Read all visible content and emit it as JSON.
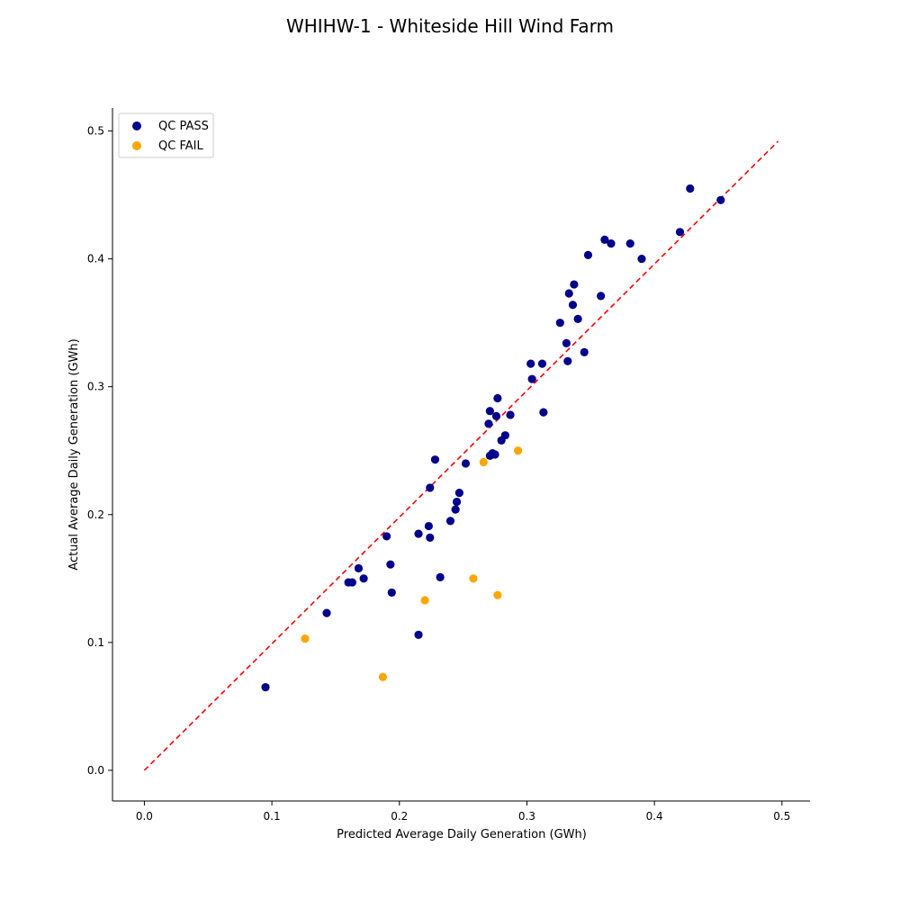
{
  "chart_data": {
    "type": "scatter",
    "title": "WHIHW-1 - Whiteside Hill Wind Farm",
    "xlabel": "Predicted Average Daily Generation (GWh)",
    "ylabel": "Actual Average Daily Generation (GWh)",
    "xlim": [
      -0.025,
      0.522
    ],
    "ylim": [
      -0.024,
      0.518
    ],
    "xticks": [
      "0.0",
      "0.1",
      "0.2",
      "0.3",
      "0.4",
      "0.5"
    ],
    "yticks": [
      "0.0",
      "0.1",
      "0.2",
      "0.3",
      "0.4",
      "0.5"
    ],
    "grid": false,
    "legend_position": "top-left",
    "reference_line": {
      "style": "dashed",
      "color": "#ff0000",
      "x": [
        0.0,
        0.497
      ],
      "y": [
        0.0,
        0.492
      ]
    },
    "series": [
      {
        "name": "QC PASS",
        "color": "#00008b",
        "points": [
          [
            0.095,
            0.065
          ],
          [
            0.143,
            0.123
          ],
          [
            0.16,
            0.147
          ],
          [
            0.163,
            0.147
          ],
          [
            0.168,
            0.158
          ],
          [
            0.172,
            0.15
          ],
          [
            0.19,
            0.183
          ],
          [
            0.193,
            0.161
          ],
          [
            0.194,
            0.139
          ],
          [
            0.215,
            0.185
          ],
          [
            0.215,
            0.106
          ],
          [
            0.223,
            0.191
          ],
          [
            0.224,
            0.182
          ],
          [
            0.224,
            0.221
          ],
          [
            0.228,
            0.243
          ],
          [
            0.232,
            0.151
          ],
          [
            0.24,
            0.195
          ],
          [
            0.244,
            0.204
          ],
          [
            0.245,
            0.21
          ],
          [
            0.247,
            0.217
          ],
          [
            0.252,
            0.24
          ],
          [
            0.27,
            0.271
          ],
          [
            0.271,
            0.281
          ],
          [
            0.271,
            0.246
          ],
          [
            0.273,
            0.248
          ],
          [
            0.275,
            0.247
          ],
          [
            0.276,
            0.277
          ],
          [
            0.277,
            0.291
          ],
          [
            0.28,
            0.258
          ],
          [
            0.283,
            0.262
          ],
          [
            0.287,
            0.278
          ],
          [
            0.303,
            0.318
          ],
          [
            0.304,
            0.306
          ],
          [
            0.312,
            0.318
          ],
          [
            0.313,
            0.28
          ],
          [
            0.326,
            0.35
          ],
          [
            0.331,
            0.334
          ],
          [
            0.332,
            0.32
          ],
          [
            0.333,
            0.373
          ],
          [
            0.336,
            0.364
          ],
          [
            0.337,
            0.38
          ],
          [
            0.34,
            0.353
          ],
          [
            0.345,
            0.327
          ],
          [
            0.348,
            0.403
          ],
          [
            0.358,
            0.371
          ],
          [
            0.361,
            0.415
          ],
          [
            0.366,
            0.412
          ],
          [
            0.381,
            0.412
          ],
          [
            0.39,
            0.4
          ],
          [
            0.42,
            0.421
          ],
          [
            0.428,
            0.455
          ],
          [
            0.452,
            0.446
          ]
        ]
      },
      {
        "name": "QC FAIL",
        "color": "#ffa500",
        "points": [
          [
            0.126,
            0.103
          ],
          [
            0.187,
            0.073
          ],
          [
            0.22,
            0.133
          ],
          [
            0.258,
            0.15
          ],
          [
            0.266,
            0.241
          ],
          [
            0.277,
            0.137
          ],
          [
            0.293,
            0.25
          ]
        ]
      }
    ]
  }
}
